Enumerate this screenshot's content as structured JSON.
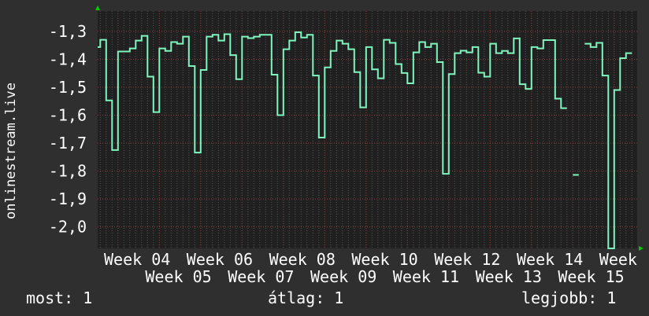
{
  "chart_data": {
    "type": "line",
    "step": true,
    "ylabel": "onlinestream.live",
    "ylim": [
      -2.077,
      -1.227
    ],
    "yticks": [
      -1.3,
      -1.4,
      -1.5,
      -1.6,
      -1.7,
      -1.8,
      -1.9,
      -2.0
    ],
    "ytick_labels": [
      "-1,3",
      "-1,4",
      "-1,5",
      "-1,6",
      "-1,7",
      "-1,8",
      "-1,9",
      "-2,0"
    ],
    "xtick_labels": [
      "Week 04",
      "Week 05",
      "Week 06",
      "Week 07",
      "Week 08",
      "Week 09",
      "Week 10",
      "Week 11",
      "Week 12",
      "Week 13",
      "Week 14",
      "Week 15",
      "Week"
    ],
    "x_resolution": "daily",
    "grid": true,
    "colors": {
      "line": "#7ff5bf",
      "background": "#2f2f2f",
      "plot": "#202020",
      "major_grid": "#8a3a3a",
      "minor_grid": "#555555",
      "arrow": "#00cc00"
    },
    "values": [
      -1.356,
      -1.33,
      -1.547,
      -1.725,
      -1.372,
      -1.372,
      -1.361,
      -1.333,
      -1.316,
      -1.462,
      -1.589,
      -1.361,
      -1.37,
      -1.338,
      -1.344,
      -1.319,
      -1.424,
      -1.734,
      -1.438,
      -1.319,
      -1.312,
      -1.333,
      -1.31,
      -1.385,
      -1.471,
      -1.319,
      -1.324,
      -1.319,
      -1.312,
      -1.312,
      -1.455,
      -1.6,
      -1.364,
      -1.333,
      -1.303,
      -1.322,
      -1.312,
      -1.458,
      -1.68,
      -1.429,
      -1.37,
      -1.333,
      -1.344,
      -1.364,
      -1.446,
      -1.572,
      -1.356,
      -1.436,
      -1.468,
      -1.33,
      -1.341,
      -1.417,
      -1.449,
      -1.486,
      -1.375,
      -1.338,
      -1.356,
      -1.344,
      -1.41,
      -1.81,
      -1.453,
      -1.378,
      -1.369,
      -1.375,
      -1.356,
      -1.448,
      -1.462,
      -1.344,
      -1.378,
      -1.37,
      -1.378,
      -1.325,
      -1.489,
      -1.506,
      -1.356,
      -1.361,
      -1.331,
      -1.331,
      -1.541,
      -1.575,
      null,
      -1.814,
      null,
      -1.344,
      -1.356,
      -1.341,
      -1.458,
      -2.1,
      -1.51,
      -1.396,
      -1.378
    ]
  },
  "legend": {
    "current": "most: 1",
    "average": "átlag: 1",
    "max": "legjobb: 1"
  }
}
